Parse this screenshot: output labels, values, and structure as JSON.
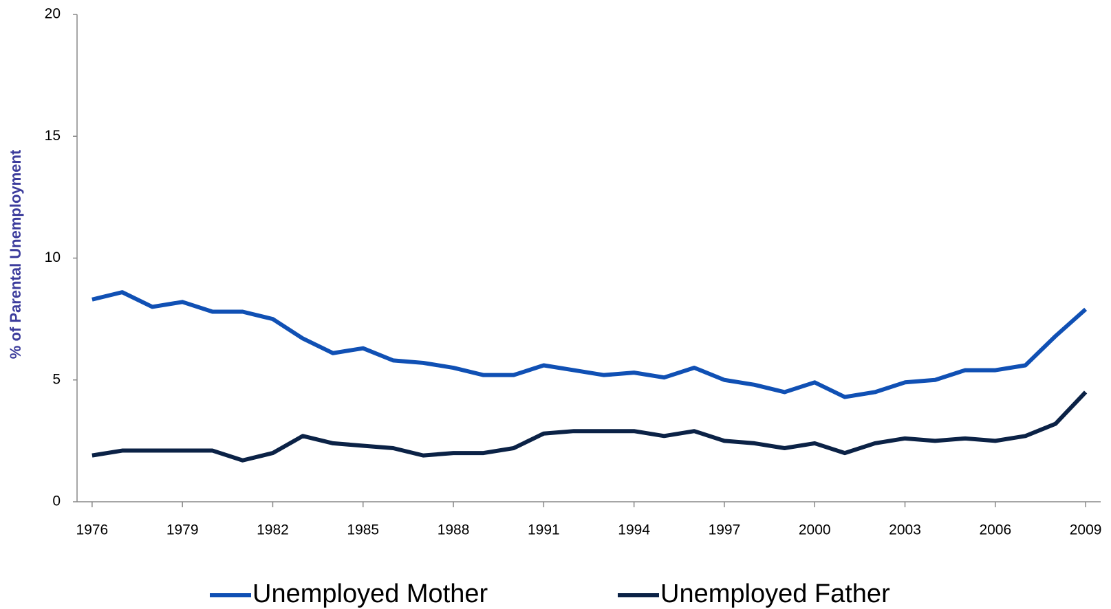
{
  "chart_data": {
    "type": "line",
    "y_label": "% of Parental Unemployment",
    "x": [
      1976,
      1977,
      1978,
      1979,
      1980,
      1981,
      1982,
      1983,
      1984,
      1985,
      1986,
      1987,
      1988,
      1989,
      1990,
      1991,
      1992,
      1993,
      1994,
      1995,
      1996,
      1997,
      1998,
      1999,
      2000,
      2001,
      2002,
      2003,
      2004,
      2005,
      2006,
      2007,
      2008,
      2009
    ],
    "series": [
      {
        "name": "Unemployed Mother",
        "color": "#1050b4",
        "values": [
          8.3,
          8.6,
          8.0,
          8.2,
          7.8,
          7.8,
          7.5,
          6.7,
          6.1,
          6.3,
          5.8,
          5.7,
          5.5,
          5.2,
          5.2,
          5.6,
          5.4,
          5.2,
          5.3,
          5.1,
          5.5,
          5.0,
          4.8,
          4.5,
          4.9,
          4.3,
          4.5,
          4.9,
          5.0,
          5.4,
          5.4,
          5.6,
          6.8,
          7.9
        ]
      },
      {
        "name": "Unemployed Father",
        "color": "#0b2246",
        "values": [
          1.9,
          2.1,
          2.1,
          2.1,
          2.1,
          1.7,
          2.0,
          2.7,
          2.4,
          2.3,
          2.2,
          1.9,
          2.0,
          2.0,
          2.2,
          2.8,
          2.9,
          2.9,
          2.9,
          2.7,
          2.9,
          2.5,
          2.4,
          2.2,
          2.4,
          2.0,
          2.4,
          2.6,
          2.5,
          2.6,
          2.5,
          2.7,
          3.2,
          4.5
        ]
      }
    ],
    "xlim": [
      1975.5,
      2009.5
    ],
    "xticks": [
      1976,
      1979,
      1982,
      1985,
      1988,
      1991,
      1994,
      1997,
      2000,
      2003,
      2006,
      2009
    ],
    "ylim": [
      0,
      20
    ],
    "yticks": [
      0,
      5,
      10,
      15,
      20
    ],
    "legend": "bottom"
  }
}
